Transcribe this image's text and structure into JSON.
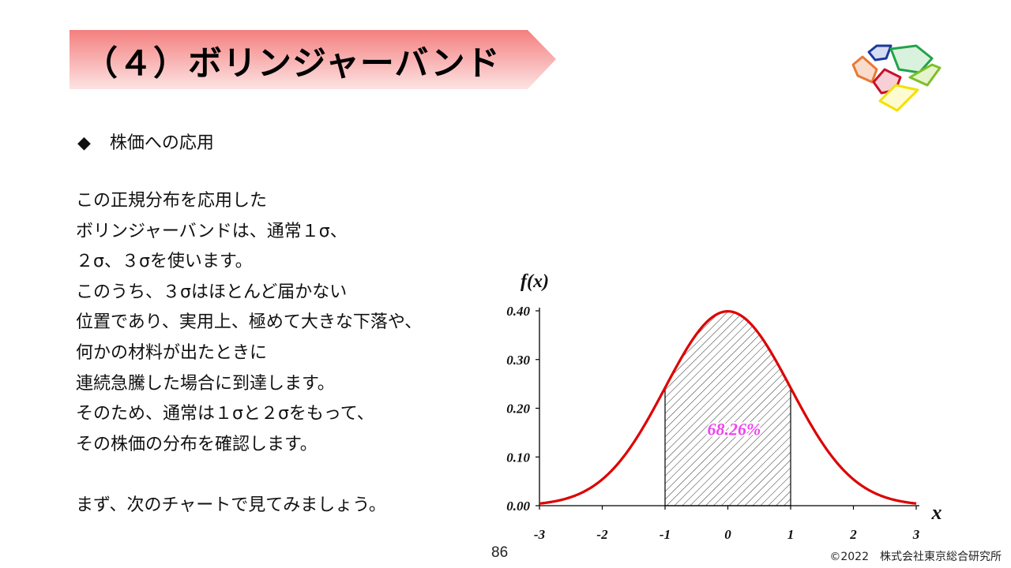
{
  "title": "（４）ボリンジャーバンド",
  "section_heading": {
    "bullet": "◆",
    "text": "株価への応用"
  },
  "body_lines": [
    "この正規分布を応用した",
    "ボリンジャーバンドは、通常１σ、",
    "２σ、３σを使います。",
    "このうち、３σはほとんど届かない",
    "位置であり、実用上、極めて大きな下落や、",
    "何かの材料が出たときに",
    "連続急騰した場合に到達します。",
    "そのため、通常は１σと２σをもって、",
    "その株価の分布を確認します。",
    "",
    "まず、次のチャートで見てみましょう。"
  ],
  "page_number": "86",
  "copyright": "©2022　株式会社東京総合研究所",
  "colors": {
    "banner_dark": "#f47f7f",
    "banner_light": "#fde3e3",
    "curve": "#dd0000",
    "annotation": "#ee44ee"
  },
  "chart_data": {
    "type": "line",
    "ylabel": "f(x)",
    "xlabel": "x",
    "x_ticks": [
      "-3",
      "-2",
      "-1",
      "0",
      "1",
      "2",
      "3"
    ],
    "y_ticks": [
      "0.00",
      "0.10",
      "0.20",
      "0.30",
      "0.40"
    ],
    "xlim": [
      -3,
      3
    ],
    "ylim": [
      0,
      0.4
    ],
    "series": [
      {
        "function": "normal_pdf",
        "mean": 0,
        "sd": 1
      }
    ],
    "shaded_region": {
      "from": -1,
      "to": 1,
      "pattern": "hatch"
    },
    "annotation": {
      "text": "68.26%",
      "x": 0.1,
      "y": 0.145
    }
  }
}
